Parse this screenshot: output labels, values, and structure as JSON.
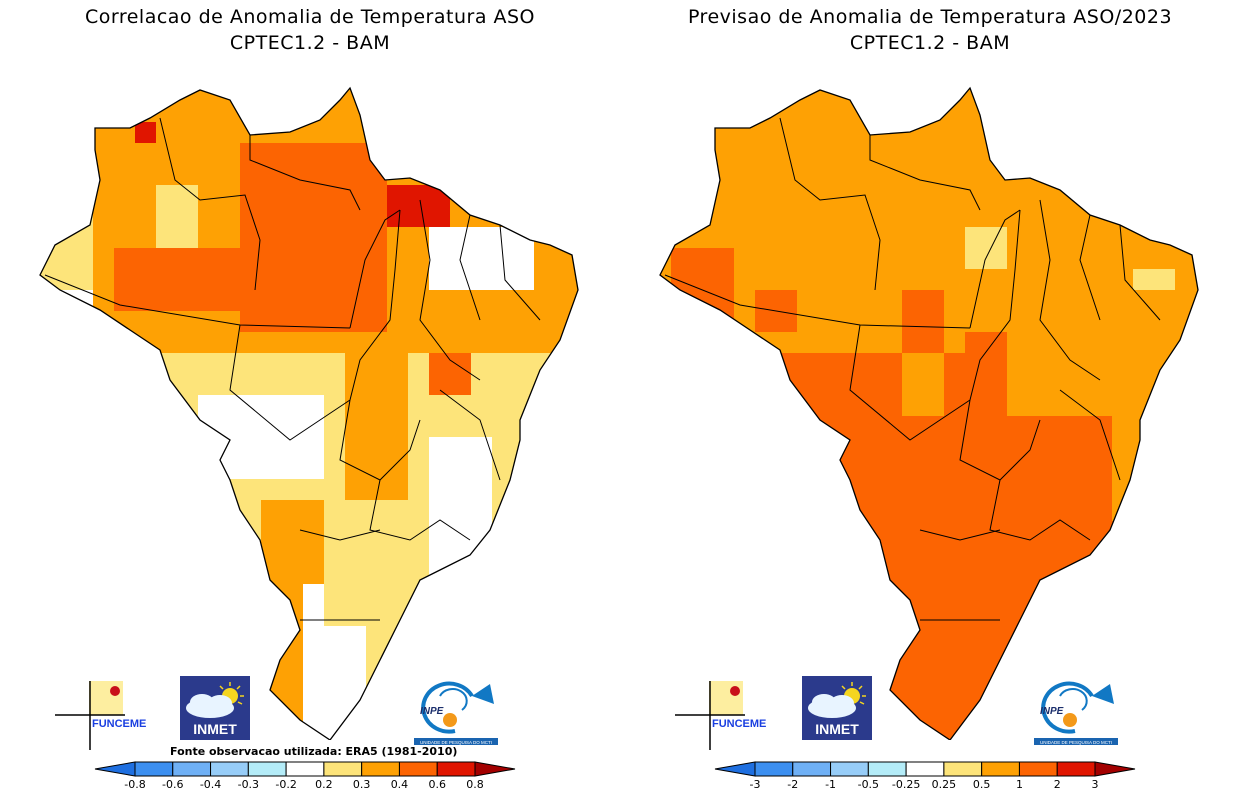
{
  "panels": [
    {
      "id": "correlation",
      "title_line1": "Correlacao de Anomalia de Temperatura ASO",
      "title_line2": "CPTEC1.2 - BAM",
      "source_note": "Fonte observacao utilizada: ERA5 (1981-2010)",
      "colorbar": {
        "tick_labels": [
          "-0.8",
          "-0.6",
          "-0.4",
          "-0.3",
          "-0.2",
          "0.2",
          "0.3",
          "0.4",
          "0.6",
          "0.8"
        ],
        "colors": [
          "#1e6fe0",
          "#3c8ff0",
          "#6fb0f5",
          "#97cdf8",
          "#b4ecf8",
          "#ffffff",
          "#fde47a",
          "#fea104",
          "#fc6402",
          "#e01500",
          "#a30000"
        ]
      },
      "dominant_classes": [
        "0.3-0.4",
        "0.4-0.6",
        "0.2-0.3",
        "-0.2-0.2",
        "0.6-0.8"
      ]
    },
    {
      "id": "forecast",
      "title_line1": "Previsao de Anomalia de Temperatura ASO/2023",
      "title_line2": "CPTEC1.2 - BAM",
      "source_note": "",
      "colorbar": {
        "tick_labels": [
          "-3",
          "-2",
          "-1",
          "-0.5",
          "-0.25",
          "0.25",
          "0.5",
          "1",
          "2",
          "3"
        ],
        "colors": [
          "#1e6fe0",
          "#3c8ff0",
          "#6fb0f5",
          "#97cdf8",
          "#b4ecf8",
          "#ffffff",
          "#fde47a",
          "#fea104",
          "#fc6402",
          "#e01500",
          "#a30000"
        ]
      },
      "dominant_classes": [
        "0.5-1",
        "1-2",
        "0.25-0.5"
      ]
    }
  ],
  "logos": {
    "funceme": "FUNCEME",
    "inmet": "INMET",
    "inpe": "INPE",
    "inpe_sub": "UNIDADE DE PESQUISA DO MCTI"
  }
}
